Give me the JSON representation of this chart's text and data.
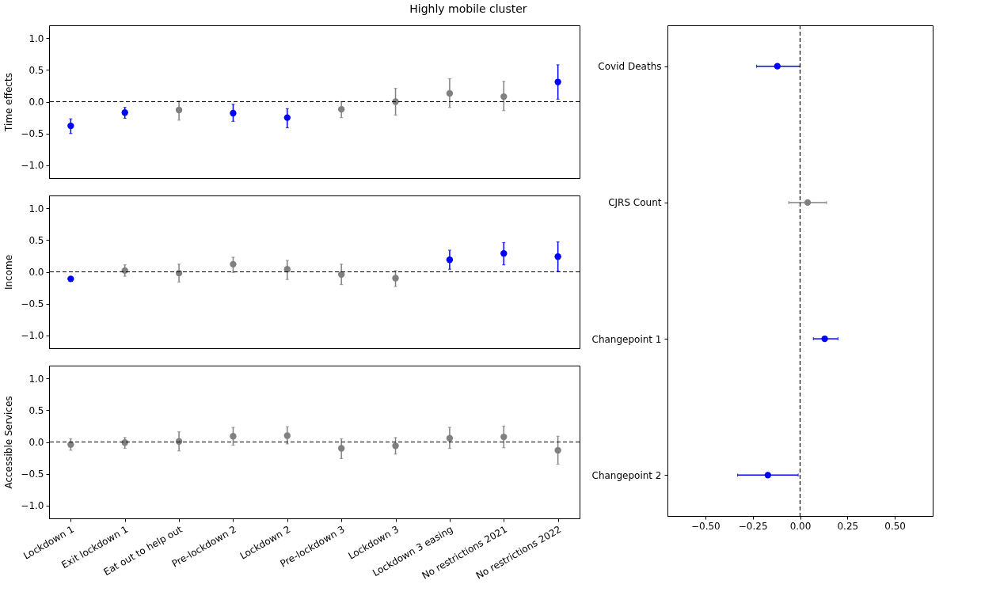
{
  "chart_data": [
    {
      "type": "scatter",
      "title": "Highly mobile cluster",
      "ylabel": "Time effects",
      "marker": "circle",
      "tick_labels": "y",
      "categories": [
        null,
        null,
        null,
        null,
        null,
        null,
        null,
        null,
        null,
        null
      ],
      "values": [
        -0.38,
        -0.17,
        -0.13,
        -0.18,
        -0.25,
        -0.12,
        0.0,
        0.13,
        0.08,
        0.31
      ],
      "errors": [
        [
          -0.5,
          -0.27
        ],
        [
          -0.26,
          -0.09
        ],
        [
          -0.29,
          0.01
        ],
        [
          -0.31,
          -0.04
        ],
        [
          -0.41,
          -0.11
        ],
        [
          -0.25,
          0.0
        ],
        [
          -0.21,
          0.21
        ],
        [
          -0.09,
          0.36
        ],
        [
          -0.14,
          0.32
        ],
        [
          0.04,
          0.58
        ]
      ],
      "colors": [
        "#0000ff",
        "#0000ff",
        "#808080",
        "#0000ff",
        "#0000ff",
        "#808080",
        "#808080",
        "#808080",
        "#808080",
        "#0000ff"
      ],
      "ylim": [
        -1.2,
        1.2
      ],
      "yticks": [
        {
          "value": -1,
          "label": "−1.0"
        },
        {
          "value": -0.5,
          "label": "−0.5"
        },
        {
          "value": 0,
          "label": "0.0"
        },
        {
          "value": 0.5,
          "label": "0.5"
        },
        {
          "value": 1,
          "label": "1.0"
        }
      ],
      "ref_lines": [
        {
          "axis": "y",
          "value": 0,
          "color": "#000000",
          "line_style": "dashed"
        }
      ]
    },
    {
      "type": "scatter",
      "ylabel": "Income",
      "marker": "circle",
      "tick_labels": "y",
      "categories": [
        null,
        null,
        null,
        null,
        null,
        null,
        null,
        null,
        null,
        null
      ],
      "values": [
        -0.11,
        0.02,
        -0.02,
        0.12,
        0.04,
        -0.04,
        -0.1,
        0.19,
        0.29,
        0.24
      ],
      "errors": [
        null,
        [
          -0.07,
          0.11
        ],
        [
          -0.16,
          0.12
        ],
        [
          -0.01,
          0.23
        ],
        [
          -0.12,
          0.18
        ],
        [
          -0.2,
          0.12
        ],
        [
          -0.23,
          0.02
        ],
        [
          0.04,
          0.34
        ],
        [
          0.11,
          0.46
        ],
        [
          0.01,
          0.47
        ]
      ],
      "colors": [
        "#0000ff",
        "#808080",
        "#808080",
        "#808080",
        "#808080",
        "#808080",
        "#808080",
        "#0000ff",
        "#0000ff",
        "#0000ff"
      ],
      "ylim": [
        -1.2,
        1.2
      ],
      "yticks": [
        {
          "value": -1,
          "label": "−1.0"
        },
        {
          "value": -0.5,
          "label": "−0.5"
        },
        {
          "value": 0,
          "label": "0.0"
        },
        {
          "value": 0.5,
          "label": "0.5"
        },
        {
          "value": 1,
          "label": "1.0"
        }
      ],
      "ref_lines": [
        {
          "axis": "y",
          "value": 0,
          "color": "#000000",
          "line_style": "dashed"
        }
      ]
    },
    {
      "type": "scatter",
      "ylabel": "Accessible Services",
      "marker": "circle",
      "categories": [
        "Lockdown 1",
        "Exit lockdown 1",
        "Eat out to help out",
        "Pre-lockdown 2",
        "Lockdown 2",
        "Pre-lockdown 3",
        "Lockdown 3",
        "Lockdown 3 easing",
        "No restrictions 2021",
        "No restrictions 2022"
      ],
      "values": [
        -0.04,
        -0.01,
        0.01,
        0.09,
        0.1,
        -0.1,
        -0.06,
        0.06,
        0.08,
        -0.13
      ],
      "errors": [
        [
          -0.13,
          0.05
        ],
        [
          -0.1,
          0.07
        ],
        [
          -0.14,
          0.16
        ],
        [
          -0.05,
          0.23
        ],
        [
          -0.03,
          0.24
        ],
        [
          -0.26,
          0.05
        ],
        [
          -0.19,
          0.07
        ],
        [
          -0.1,
          0.23
        ],
        [
          -0.09,
          0.25
        ],
        [
          -0.35,
          0.09
        ]
      ],
      "colors": [
        "#808080",
        "#808080",
        "#808080",
        "#808080",
        "#808080",
        "#808080",
        "#808080",
        "#808080",
        "#808080",
        "#808080"
      ],
      "ylim": [
        -1.2,
        1.2
      ],
      "yticks": [
        {
          "value": -1,
          "label": "−1.0"
        },
        {
          "value": -0.5,
          "label": "−0.5"
        },
        {
          "value": 0,
          "label": "0.0"
        },
        {
          "value": 0.5,
          "label": "0.5"
        },
        {
          "value": 1,
          "label": "1.0"
        }
      ],
      "ref_lines": [
        {
          "axis": "y",
          "value": 0,
          "color": "#000000",
          "line_style": "dashed"
        }
      ]
    },
    {
      "type": "scatter",
      "orientation": "horizontal",
      "marker": "circle",
      "categories": [
        "Covid Deaths",
        "CJRS Count",
        "Changepoint 1",
        "Changepoint 2"
      ],
      "values": [
        -0.12,
        0.04,
        0.13,
        -0.17
      ],
      "errors": [
        [
          -0.23,
          0.0
        ],
        [
          -0.06,
          0.14
        ],
        [
          0.07,
          0.2
        ],
        [
          -0.33,
          -0.01
        ]
      ],
      "colors": [
        "#0000ff",
        "#808080",
        "#0000ff",
        "#0000ff"
      ],
      "xlim": [
        -0.7,
        0.7
      ],
      "xticks": [
        {
          "value": -0.5,
          "label": "−0.50"
        },
        {
          "value": -0.25,
          "label": "−0.25"
        },
        {
          "value": 0,
          "label": "0.00"
        },
        {
          "value": 0.25,
          "label": "0.25"
        },
        {
          "value": 0.5,
          "label": "0.50"
        }
      ],
      "ref_lines": [
        {
          "axis": "x",
          "value": 0,
          "color": "#000000",
          "line_style": "dashed"
        }
      ]
    }
  ]
}
